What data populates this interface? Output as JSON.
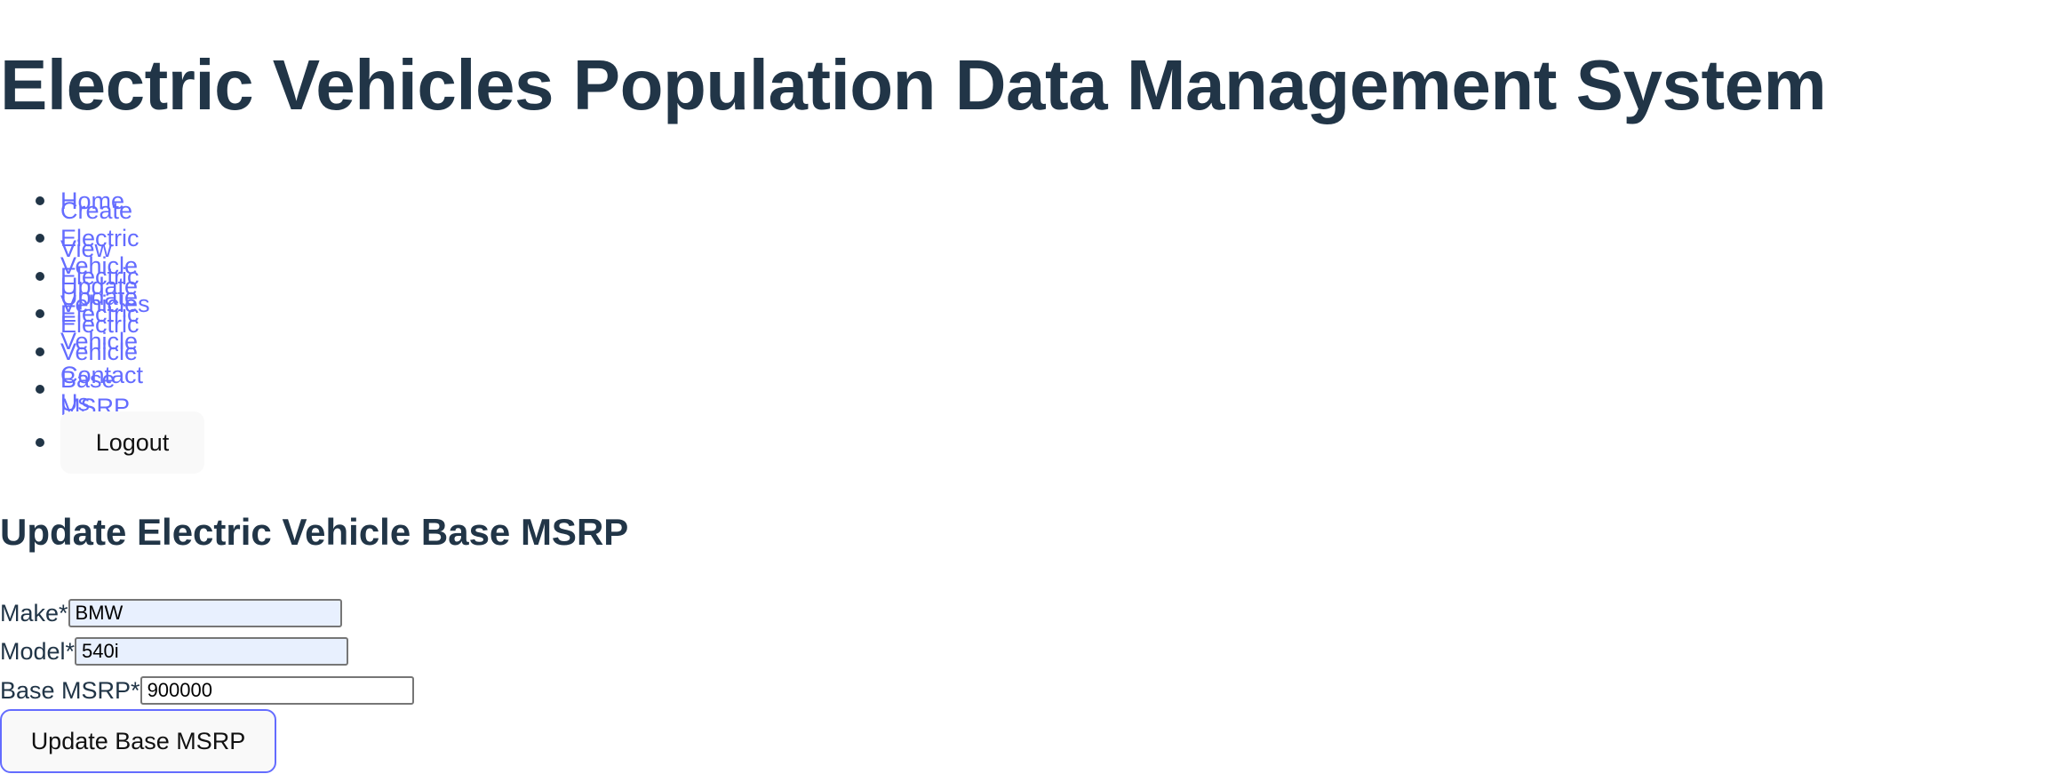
{
  "header": {
    "title": "Electric Vehicles Population Data Management System"
  },
  "nav": {
    "items": [
      "Home",
      "Create Electric Vehicle",
      "View Electric Vehicles",
      "Update Electric Vehicle",
      "Update Electric Vehicle Base MSRP",
      "Contact Us"
    ],
    "logout": "Logout"
  },
  "form": {
    "title": "Update Electric Vehicle Base MSRP",
    "fields": [
      {
        "label": "Make*",
        "value": "BMW"
      },
      {
        "label": "Model*",
        "value": "540i"
      },
      {
        "label": "Base MSRP*",
        "value": "900000"
      }
    ],
    "submit": "Update Base MSRP"
  }
}
